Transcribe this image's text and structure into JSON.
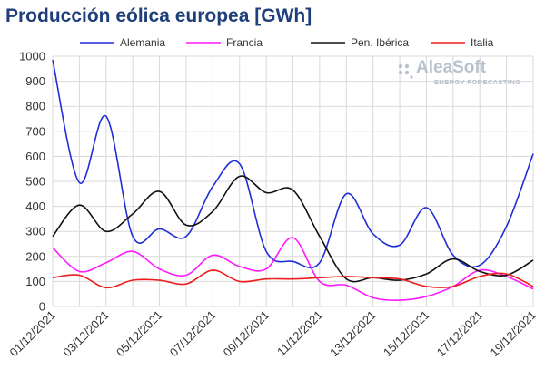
{
  "title": "Producción eólica europea [GWh]",
  "logo": {
    "name": "AleaSoft",
    "tagline": "ENERGY FORECASTING"
  },
  "colors": {
    "title": "#1f3f7a",
    "grid": "#d9d9d9",
    "Alemania": "#1f2fd6",
    "Francia": "#ff19ff",
    "Pen. Ibérica": "#111111",
    "Italia": "#ee1c1c"
  },
  "chart_data": {
    "type": "line",
    "title": "Producción eólica europea [GWh]",
    "xlabel": "",
    "ylabel": "",
    "ylim": [
      0,
      1000
    ],
    "yticks": [
      0,
      100,
      200,
      300,
      400,
      500,
      600,
      700,
      800,
      900,
      1000
    ],
    "grid": true,
    "legend": "top",
    "x": [
      "01/12/2021",
      "02/12/2021",
      "03/12/2021",
      "04/12/2021",
      "05/12/2021",
      "06/12/2021",
      "07/12/2021",
      "08/12/2021",
      "09/12/2021",
      "10/12/2021",
      "11/12/2021",
      "12/12/2021",
      "13/12/2021",
      "14/12/2021",
      "15/12/2021",
      "16/12/2021",
      "17/12/2021",
      "18/12/2021",
      "19/12/2021"
    ],
    "xtick_labels": [
      "01/12/2021",
      "03/12/2021",
      "05/12/2021",
      "07/12/2021",
      "09/12/2021",
      "11/12/2021",
      "13/12/2021",
      "15/12/2021",
      "17/12/2021",
      "19/12/2021"
    ],
    "series": [
      {
        "name": "Alemania",
        "values": [
          985,
          495,
          760,
          280,
          310,
          280,
          480,
          570,
          220,
          180,
          175,
          450,
          290,
          245,
          395,
          205,
          165,
          320,
          610
        ]
      },
      {
        "name": "Francia",
        "values": [
          235,
          140,
          175,
          220,
          150,
          125,
          205,
          160,
          150,
          275,
          100,
          85,
          35,
          25,
          40,
          80,
          145,
          120,
          70
        ]
      },
      {
        "name": "Pen. Ibérica",
        "values": [
          280,
          405,
          300,
          370,
          460,
          325,
          380,
          520,
          455,
          465,
          280,
          110,
          115,
          105,
          130,
          190,
          140,
          125,
          185
        ]
      },
      {
        "name": "Italia",
        "values": [
          115,
          125,
          75,
          105,
          105,
          90,
          145,
          100,
          110,
          110,
          115,
          120,
          115,
          110,
          80,
          80,
          120,
          130,
          80
        ]
      }
    ]
  }
}
